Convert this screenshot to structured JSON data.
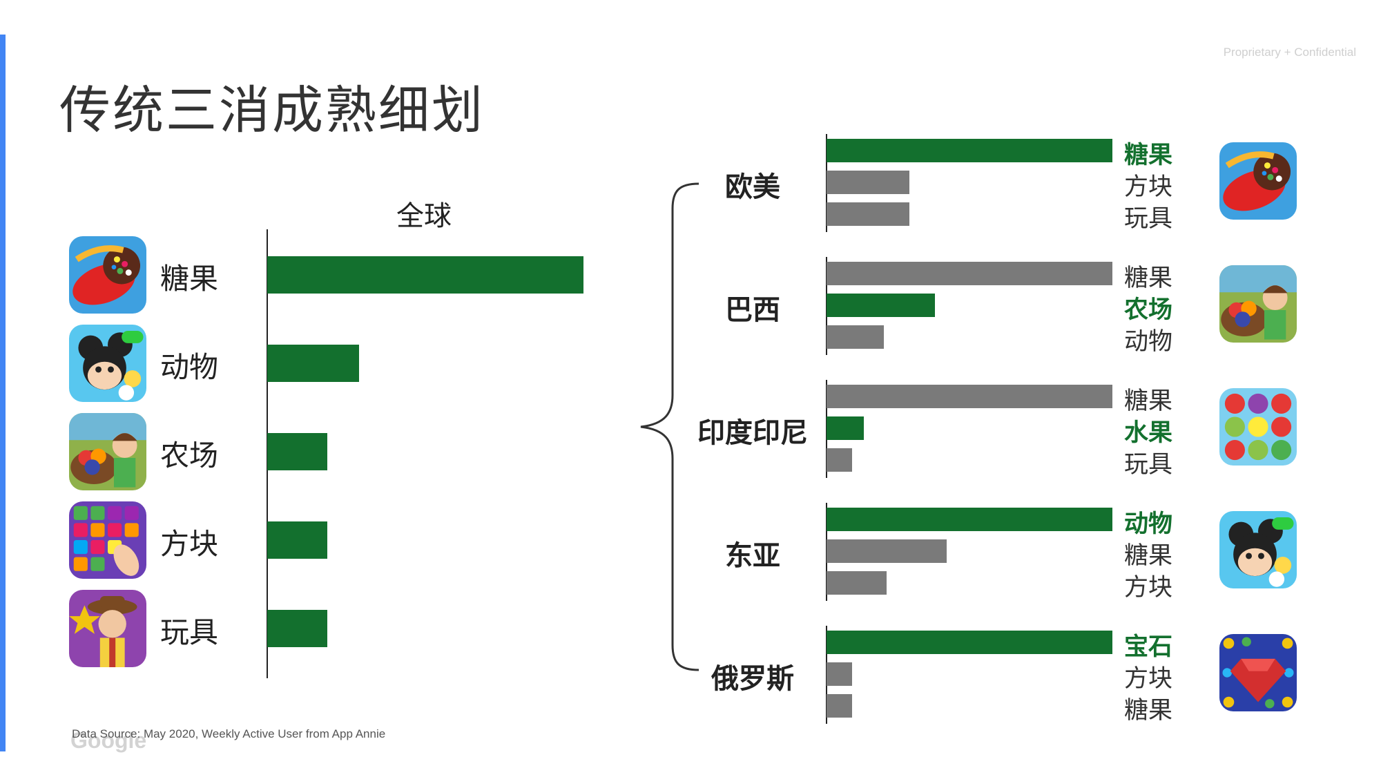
{
  "header": {
    "title": "传统三消成熟细划",
    "confidential": "Proprietary + Confidential"
  },
  "footer": {
    "source": "Data Source: May 2020, Weekly Active User from App Annie",
    "google": "Google"
  },
  "colors": {
    "highlight": "#13702e",
    "other": "#7a7a7a",
    "accent": "#4285f4"
  },
  "chart_data": [
    {
      "type": "bar",
      "orientation": "horizontal",
      "title": "全球",
      "categories": [
        "糖果",
        "动物",
        "农场",
        "方块",
        "玩具"
      ],
      "icons": [
        "candy-icon",
        "mickey-icon",
        "farm-icon",
        "block-icon",
        "toy-icon"
      ],
      "values": [
        100,
        29,
        19,
        19,
        19
      ],
      "xlim": [
        0,
        100
      ]
    },
    {
      "type": "bar",
      "orientation": "horizontal",
      "xlim": [
        0,
        100
      ],
      "groups": [
        {
          "region": "欧美",
          "icon": "candy-icon",
          "bars": [
            {
              "label": "糖果",
              "value": 100,
              "highlight": true
            },
            {
              "label": "方块",
              "value": 29,
              "highlight": false
            },
            {
              "label": "玩具",
              "value": 29,
              "highlight": false
            }
          ]
        },
        {
          "region": "巴西",
          "icon": "farm-icon",
          "bars": [
            {
              "label": "糖果",
              "value": 100,
              "highlight": false
            },
            {
              "label": "农场",
              "value": 38,
              "highlight": true
            },
            {
              "label": "动物",
              "value": 20,
              "highlight": false
            }
          ]
        },
        {
          "region": "印度印尼",
          "icon": "fruit-icon",
          "bars": [
            {
              "label": "糖果",
              "value": 100,
              "highlight": false
            },
            {
              "label": "水果",
              "value": 13,
              "highlight": true
            },
            {
              "label": "玩具",
              "value": 9,
              "highlight": false
            }
          ]
        },
        {
          "region": "东亚",
          "icon": "mickey-icon",
          "bars": [
            {
              "label": "动物",
              "value": 100,
              "highlight": true
            },
            {
              "label": "糖果",
              "value": 42,
              "highlight": false
            },
            {
              "label": "方块",
              "value": 21,
              "highlight": false
            }
          ]
        },
        {
          "region": "俄罗斯",
          "icon": "gem-icon",
          "bars": [
            {
              "label": "宝石",
              "value": 100,
              "highlight": true
            },
            {
              "label": "方块",
              "value": 9,
              "highlight": false
            },
            {
              "label": "糖果",
              "value": 9,
              "highlight": false
            }
          ]
        }
      ]
    }
  ]
}
